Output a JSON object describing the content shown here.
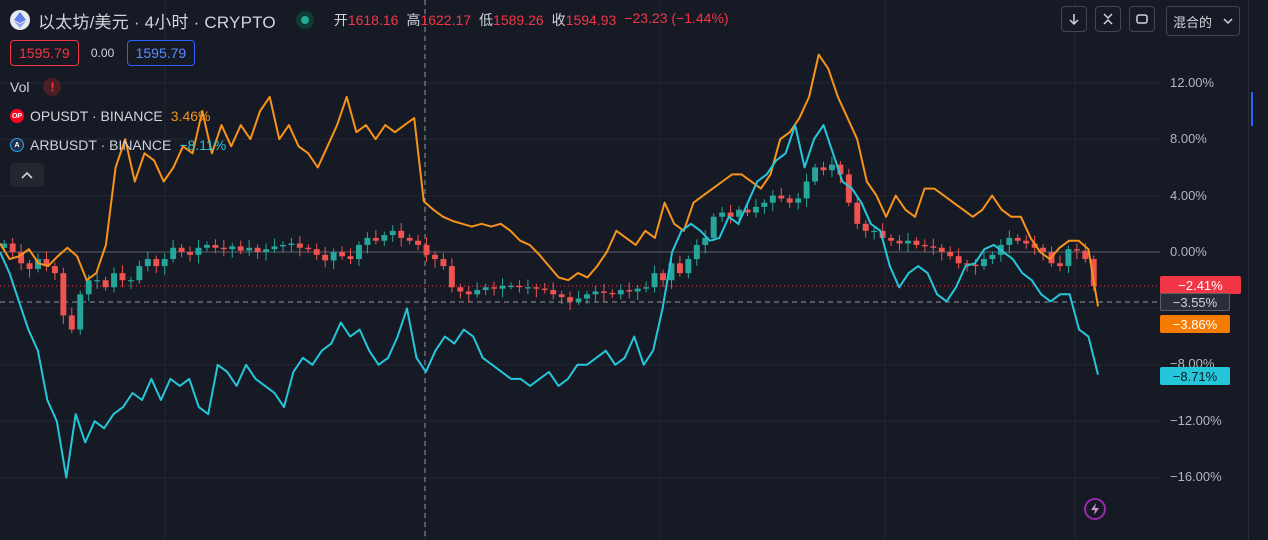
{
  "header": {
    "symbol_title": "以太坊/美元 · 4小时 · CRYPTO",
    "ohlc": [
      {
        "label": "开",
        "value": "1618.16"
      },
      {
        "label": "高",
        "value": "1622.17"
      },
      {
        "label": "低",
        "value": "1589.26"
      },
      {
        "label": "收",
        "value": "1594.93"
      }
    ],
    "change": "−23.23 (−1.44%)"
  },
  "toolbar": {
    "scale_mode": "混合的"
  },
  "trade": {
    "sell_price": "1595.79",
    "spread": "0.00",
    "buy_price": "1595.79"
  },
  "legend": {
    "vol": "Vol",
    "op_name": "OPUSDT · BINANCE",
    "op_value": "3.46%",
    "arb_name": "ARBUSDT · BINANCE",
    "arb_value": "−8.11%"
  },
  "axis": {
    "ticks": [
      "12.00%",
      "8.00%",
      "4.00%",
      "0.00%",
      "−8.00%",
      "−12.00%",
      "−16.00%"
    ]
  },
  "badges": {
    "eth": "−2.41%",
    "crosshair": "−3.55%",
    "op": "−3.86%",
    "arb": "−8.71%"
  },
  "colors": {
    "up": "#26a69a",
    "down": "#ef5350",
    "op": "#f7931a",
    "arb": "#26c6da",
    "background": "#161a25"
  },
  "chart_data": {
    "type": "line",
    "ylabel": "",
    "ylim": [
      -18,
      15
    ],
    "grid": true,
    "legend_position": "top-left",
    "series": [
      {
        "name": "OPUSDT · BINANCE",
        "color": "#f7931a",
        "values": [
          0.6,
          -0.5,
          -0.3,
          0.2,
          -0.8,
          -1.0,
          -0.3,
          0.3,
          -0.3,
          -2.0,
          -1.5,
          0.5,
          6.0,
          8.0,
          5.0,
          7.0,
          6.5,
          5.0,
          6.0,
          7.5,
          7.0,
          10.0,
          7.0,
          9.0,
          7.5,
          9.0,
          8.0,
          10.0,
          11.0,
          8.0,
          9.0,
          7.5,
          7.0,
          6.0,
          7.5,
          9.0,
          11.0,
          8.5,
          9.0,
          8.0,
          9.0,
          8.5,
          9.0,
          9.5,
          3.6,
          3.0,
          2.5,
          2.2,
          2.0,
          1.8,
          2.0,
          1.8,
          2.0,
          1.5,
          0.8,
          0.5,
          -0.2,
          -1.0,
          -1.8,
          -2.0,
          -1.5,
          -1.8,
          -1.0,
          0.0,
          1.5,
          1.0,
          0.5,
          1.5,
          1.0,
          3.5,
          2.0,
          1.5,
          3.5,
          4.0,
          4.5,
          5.0,
          5.5,
          5.5,
          5.0,
          4.5,
          5.5,
          8.0,
          8.5,
          9.5,
          11.0,
          14.0,
          13.0,
          11.0,
          9.5,
          8.0,
          5.0,
          4.0,
          2.5,
          4.0,
          3.0,
          2.5,
          4.5,
          4.5,
          4.0,
          3.5,
          3.0,
          2.5,
          3.0,
          4.0,
          3.0,
          2.5,
          2.5,
          1.0,
          0.0,
          -0.5,
          0.3,
          0.8,
          0.8,
          0.2,
          -3.86
        ]
      },
      {
        "name": "ARBUSDT · BINANCE",
        "color": "#26c6da",
        "values": [
          0.0,
          -1.5,
          -3.5,
          -5.5,
          -7.0,
          -10.5,
          -12.0,
          -16.0,
          -11.5,
          -13.5,
          -12.0,
          -12.5,
          -11.5,
          -11.0,
          -10.0,
          -10.5,
          -9.0,
          -10.5,
          -9.0,
          -9.5,
          -9.0,
          -11.0,
          -11.5,
          -8.0,
          -8.5,
          -9.5,
          -8.0,
          -9.0,
          -9.5,
          -10.0,
          -11.0,
          -8.5,
          -7.5,
          -8.0,
          -7.0,
          -6.5,
          -5.0,
          -6.0,
          -5.5,
          -7.0,
          -8.0,
          -7.5,
          -6.0,
          -4.0,
          -7.5,
          -8.5,
          -7.0,
          -6.0,
          -6.5,
          -5.5,
          -6.0,
          -7.5,
          -8.0,
          -8.5,
          -9.0,
          -9.0,
          -9.5,
          -9.0,
          -8.5,
          -9.5,
          -9.0,
          -8.0,
          -8.0,
          -7.5,
          -7.0,
          -8.0,
          -7.5,
          -6.0,
          -8.0,
          -7.0,
          -4.0,
          0.0,
          1.5,
          2.0,
          1.5,
          0.8,
          1.0,
          2.5,
          2.0,
          3.5,
          5.0,
          5.5,
          6.5,
          7.0,
          9.0,
          6.0,
          8.0,
          9.0,
          7.0,
          5.0,
          4.5,
          3.5,
          2.0,
          1.5,
          -1.0,
          -2.5,
          -1.5,
          -1.0,
          -1.5,
          -3.0,
          -3.5,
          -2.5,
          -1.0,
          -0.8,
          0.2,
          0.5,
          0.0,
          -0.5,
          -1.5,
          -2.0,
          -3.0,
          -3.5,
          -3.0,
          -3.0,
          -5.5,
          -6.0,
          -8.71
        ]
      },
      {
        "name": "ETHUSD",
        "type": "candlestick",
        "values": [
          0.6,
          0.0,
          -0.8,
          -1.2,
          -0.5,
          -1.0,
          -1.5,
          -4.5,
          -5.5,
          -3.0,
          -2.0,
          -2.0,
          -2.5,
          -1.5,
          -2.0,
          -2.0,
          -1.0,
          -0.5,
          -1.0,
          -0.5,
          0.3,
          0.0,
          -0.2,
          0.3,
          0.5,
          0.3,
          0.2,
          0.4,
          0.1,
          0.3,
          0.0,
          0.2,
          0.4,
          0.5,
          0.6,
          0.3,
          0.2,
          -0.2,
          -0.6,
          0.0,
          -0.3,
          -0.5,
          0.5,
          1.0,
          0.8,
          1.2,
          1.5,
          1.0,
          0.8,
          0.5,
          -0.2,
          -0.5,
          -1.0,
          -2.5,
          -2.8,
          -3.0,
          -2.7,
          -2.5,
          -2.6,
          -2.4,
          -2.4,
          -2.5,
          -2.5,
          -2.6,
          -2.7,
          -3.0,
          -3.2,
          -3.5,
          -3.3,
          -3.0,
          -2.8,
          -2.9,
          -3.0,
          -2.7,
          -2.8,
          -2.6,
          -2.5,
          -1.5,
          -2.0,
          -0.8,
          -1.5,
          -0.5,
          0.5,
          1.0,
          2.5,
          2.8,
          2.5,
          3.0,
          2.8,
          3.2,
          3.5,
          4.0,
          3.8,
          3.5,
          3.8,
          5.0,
          6.0,
          5.8,
          6.2,
          5.5,
          3.5,
          2.0,
          1.5,
          1.5,
          1.0,
          0.8,
          0.6,
          0.8,
          0.5,
          0.4,
          0.3,
          0.0,
          -0.3,
          -0.8,
          -0.9,
          -1.0,
          -0.5,
          -0.2,
          0.5,
          1.0,
          0.8,
          0.6,
          0.3,
          0.0,
          -0.8,
          -1.0,
          0.2,
          0.1,
          -0.5,
          -2.41
        ]
      }
    ]
  }
}
